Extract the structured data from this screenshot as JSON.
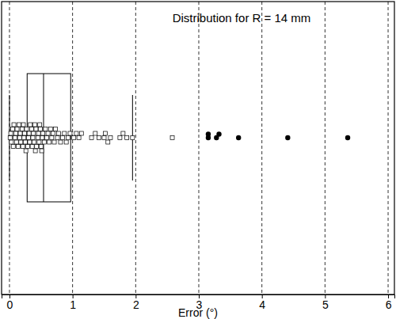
{
  "chart_data": {
    "type": "box",
    "orientation": "horizontal",
    "title": "Distribution for R = 14 mm",
    "x_label": "Error (°)",
    "xlim": [
      -0.125,
      6.1
    ],
    "xticks": [
      0,
      1,
      2,
      3,
      4,
      5,
      6
    ],
    "grid": true,
    "whisker_low": 0.0,
    "q1": 0.28,
    "median": 0.54,
    "q3": 0.97,
    "whisker_high": 1.95,
    "points": [
      0.01,
      0.02,
      0.03,
      0.05,
      0.06,
      0.07,
      0.09,
      0.1,
      0.11,
      0.12,
      0.14,
      0.15,
      0.16,
      0.17,
      0.18,
      0.2,
      0.21,
      0.22,
      0.23,
      0.24,
      0.25,
      0.26,
      0.27,
      0.29,
      0.3,
      0.31,
      0.32,
      0.33,
      0.35,
      0.36,
      0.37,
      0.38,
      0.39,
      0.4,
      0.41,
      0.42,
      0.43,
      0.45,
      0.46,
      0.47,
      0.48,
      0.49,
      0.5,
      0.51,
      0.52,
      0.53,
      0.55,
      0.57,
      0.59,
      0.61,
      0.63,
      0.65,
      0.67,
      0.69,
      0.71,
      0.73,
      0.76,
      0.78,
      0.81,
      0.84,
      0.87,
      0.9,
      0.93,
      0.96,
      1.02,
      1.06,
      1.1,
      1.14,
      1.3,
      1.36,
      1.42,
      1.5,
      1.52,
      1.56,
      1.6,
      1.75,
      1.8,
      1.86,
      1.95,
      2.58
    ],
    "outliers": [
      3.15,
      3.15,
      3.28,
      3.32,
      3.63,
      4.41,
      5.36
    ]
  }
}
